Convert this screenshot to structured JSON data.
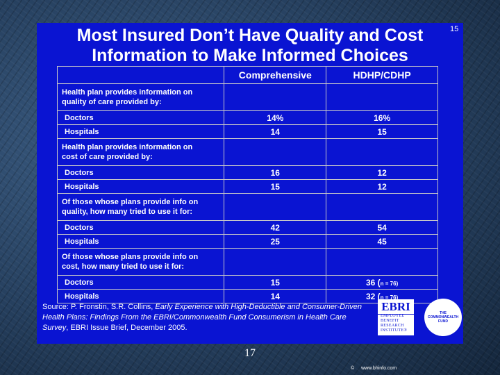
{
  "slide": {
    "title_line1": "Most Insured Don’t Have Quality and Cost",
    "title_line2": "Information to Make Informed Choices",
    "slide_number": "15"
  },
  "table": {
    "col1": "Comprehensive",
    "col2": "HDHP/CDHP",
    "sections": [
      {
        "label_line1": "Health plan provides information on",
        "label_line2": "quality of care provided by:",
        "rows": [
          {
            "label": "Doctors",
            "comprehensive": "14%",
            "hdhp": "16%",
            "note": ""
          },
          {
            "label": "Hospitals",
            "comprehensive": "14",
            "hdhp": "15",
            "note": ""
          }
        ]
      },
      {
        "label_line1": "Health plan provides information on",
        "label_line2": "cost of care provided by:",
        "rows": [
          {
            "label": "Doctors",
            "comprehensive": "16",
            "hdhp": "12",
            "note": ""
          },
          {
            "label": "Hospitals",
            "comprehensive": "15",
            "hdhp": "12",
            "note": ""
          }
        ]
      },
      {
        "label_line1": "Of those whose plans provide info on",
        "label_line2": "quality, how many tried to use it for:",
        "rows": [
          {
            "label": "Doctors",
            "comprehensive": "42",
            "hdhp": "54",
            "note": ""
          },
          {
            "label": "Hospitals",
            "comprehensive": "25",
            "hdhp": "45",
            "note": ""
          }
        ]
      },
      {
        "label_line1": "Of those whose plans provide info on",
        "label_line2": "cost, how many tried to use it for:",
        "rows": [
          {
            "label": "Doctors",
            "comprehensive": "15",
            "hdhp": "36 (",
            "note": "n = 76)"
          },
          {
            "label": "Hospitals",
            "comprehensive": "14",
            "hdhp": "32 (",
            "note": "n = 76)"
          }
        ]
      }
    ]
  },
  "source": {
    "prefix": "Source: P. Fronstin, S.R. Collins, ",
    "italic": "Early Experience with High-Deductible and Consumer-Driven Health Plans: Findings From the EBRI/Commonwealth Fund Consumerism in Health Care Survey",
    "suffix": ", EBRI Issue Brief, December 2005."
  },
  "logos": {
    "ebri_big": "EBRI",
    "ebri_line1": "EMPLOYEE",
    "ebri_line2": "BENEFIT",
    "ebri_line3": "RESEARCH",
    "ebri_line4": "INSTITUTE®",
    "cmw_line1": "THE",
    "cmw_line2": "COMMONWEALTH",
    "cmw_line3": "FUND"
  },
  "footer": {
    "page": "17",
    "copyright": "©",
    "site": "www.bhinfo.com"
  },
  "colors": {
    "slide_bg": "#0a14d2",
    "text": "#ffffff",
    "grid": "#c8c8c8"
  }
}
